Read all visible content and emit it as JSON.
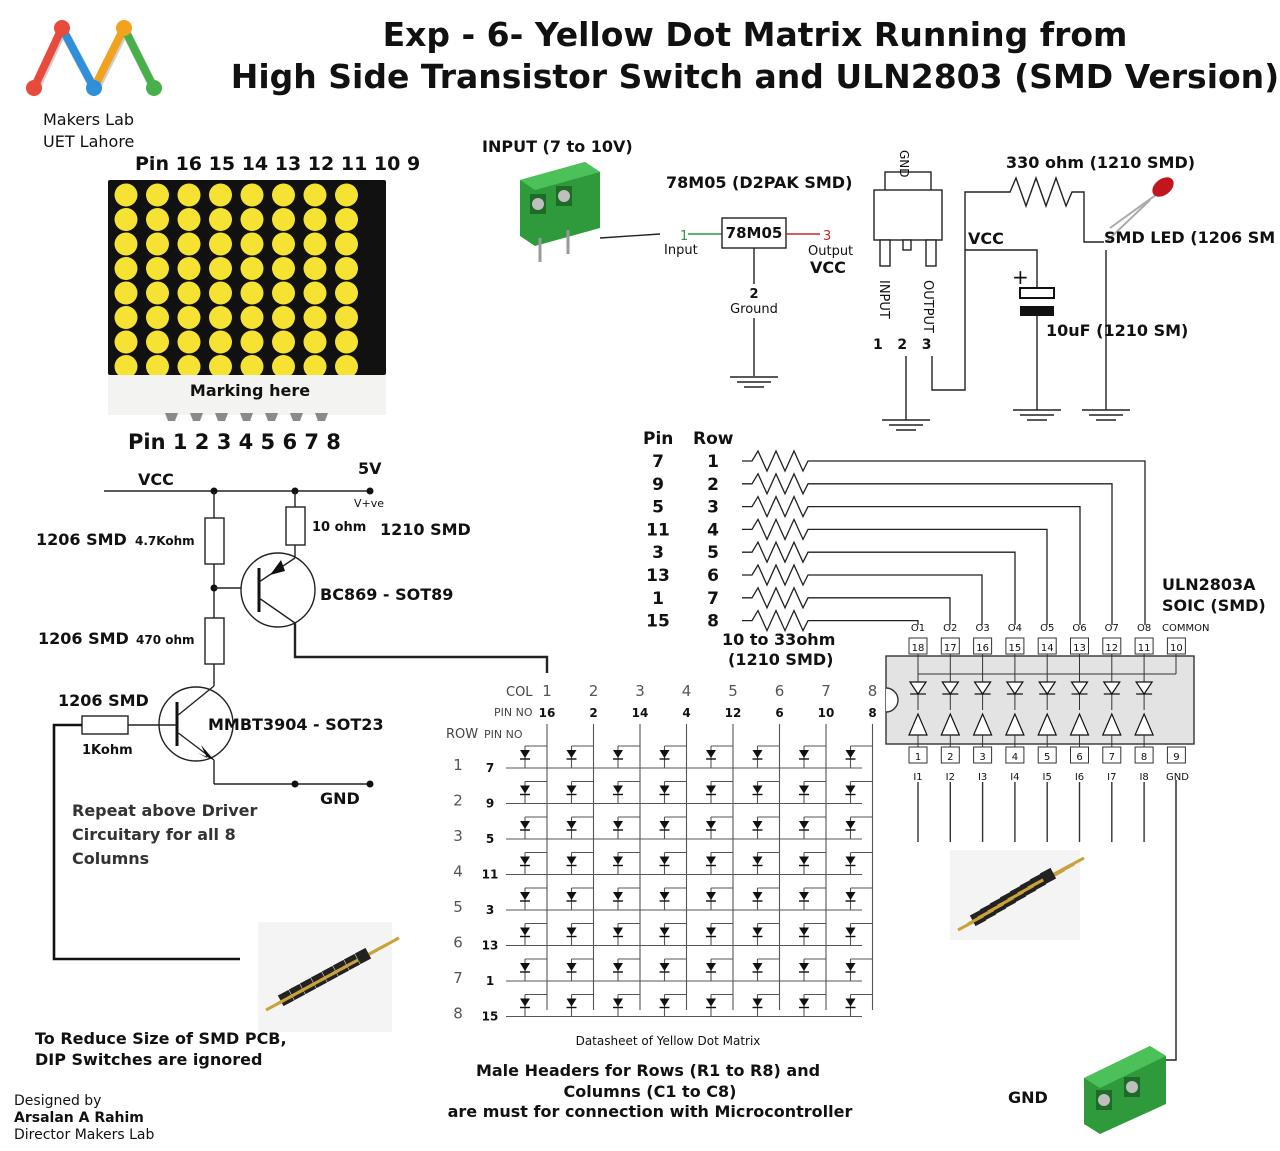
{
  "title": {
    "line1": "Exp - 6- Yellow Dot Matrix  Running from",
    "line2": "High Side Transistor Switch and ULN2803 (SMD Version)"
  },
  "logo": {
    "org_line1": "Makers Lab",
    "org_line2": "UET Lahore",
    "colors": [
      "#e84a3c",
      "#2f8fd8",
      "#f2a21c",
      "#47b04b"
    ]
  },
  "dot_matrix": {
    "top_pins": "Pin 16 15 14 13 12 11 10 9",
    "bottom_pins": "Pin 1 2 3 4 5 6 7 8",
    "marking": "Marking here",
    "led_color": "#f6e232"
  },
  "power_supply": {
    "input_label": "INPUT (7 to 10V)",
    "regulator_package": "78M05 (D2PAK SMD)",
    "regulator_name": "78M05",
    "pin1_num": "1",
    "pin1_name": "Input",
    "pin3_num": "3",
    "pin3_name": "Output",
    "vcc_out": "VCC",
    "pin2_num": "2",
    "pin2_name": "Ground",
    "pkg_gnd": "GND",
    "pkg_input": "INPUT",
    "pkg_output": "OUTPUT",
    "pkg_pin_nums": "1   2   3",
    "resistor": "330 ohm (1210 SMD)",
    "led": "SMD LED (1206 SM",
    "vcc_rail": "VCC",
    "capacitor": "10uF (1210 SM)"
  },
  "driver": {
    "vcc": "VCC",
    "v5": "5V",
    "vplus": "V+ve",
    "r1_label": "1206 SMD",
    "r1_value": "4.7Kohm",
    "r2_label": "1206 SMD",
    "r2_value": "470 ohm",
    "r3_value": "10 ohm",
    "r3_pkg": "1210 SMD",
    "pnp": "BC869 - SOT89",
    "r4_label": "1206 SMD",
    "r4_value": "1Kohm",
    "npn": "MMBT3904 - SOT23",
    "gnd": "GND",
    "note_line1": "Repeat above Driver",
    "note_line2": "Circuitary for all 8",
    "note_line3": "Columns"
  },
  "row_resistors": {
    "pin_header": "Pin",
    "row_header": "Row",
    "pins": [
      "7",
      "9",
      "5",
      "11",
      "3",
      "13",
      "1",
      "15"
    ],
    "rows": [
      "1",
      "2",
      "3",
      "4",
      "5",
      "6",
      "7",
      "8"
    ],
    "value_line1": "10 to 33ohm",
    "value_line2": "(1210 SMD)"
  },
  "uln": {
    "name_line1": "ULN2803A",
    "name_line2": "SOIC (SMD)",
    "outputs": [
      "O1",
      "O2",
      "O3",
      "O4",
      "O5",
      "O6",
      "O7",
      "O8"
    ],
    "common": "COMMON",
    "top_pins": [
      "18",
      "17",
      "16",
      "15",
      "14",
      "13",
      "12",
      "11",
      "10"
    ],
    "bottom_pins": [
      "1",
      "2",
      "3",
      "4",
      "5",
      "6",
      "7",
      "8",
      "9"
    ],
    "inputs": [
      "I1",
      "I2",
      "I3",
      "I4",
      "I5",
      "I6",
      "I7",
      "I8"
    ],
    "gnd_pin": "GND"
  },
  "matrix_schematic": {
    "col_label": "COL",
    "pin_no_label": "PIN NO",
    "row_label": "ROW",
    "col_numbers": [
      "1",
      "2",
      "3",
      "4",
      "5",
      "6",
      "7",
      "8"
    ],
    "col_pins": [
      "16",
      "2",
      "14",
      "4",
      "12",
      "6",
      "10",
      "8"
    ],
    "row_numbers": [
      "1",
      "2",
      "3",
      "4",
      "5",
      "6",
      "7",
      "8"
    ],
    "row_pins": [
      "7",
      "9",
      "5",
      "11",
      "3",
      "13",
      "1",
      "15"
    ],
    "caption": "Datasheet of Yellow Dot Matrix"
  },
  "notes": {
    "smd_line1": "To Reduce Size of SMD PCB,",
    "smd_line2": "DIP Switches are ignored",
    "headers_line1": "Male Headers for Rows (R1 to R8) and",
    "headers_line2": "Columns (C1 to C8)",
    "headers_line3": "are must for connection with Microcontroller",
    "gnd": "GND"
  },
  "credits": {
    "line1": "Designed by",
    "line2": "Arsalan A Rahim",
    "line3": "Director Makers Lab"
  }
}
